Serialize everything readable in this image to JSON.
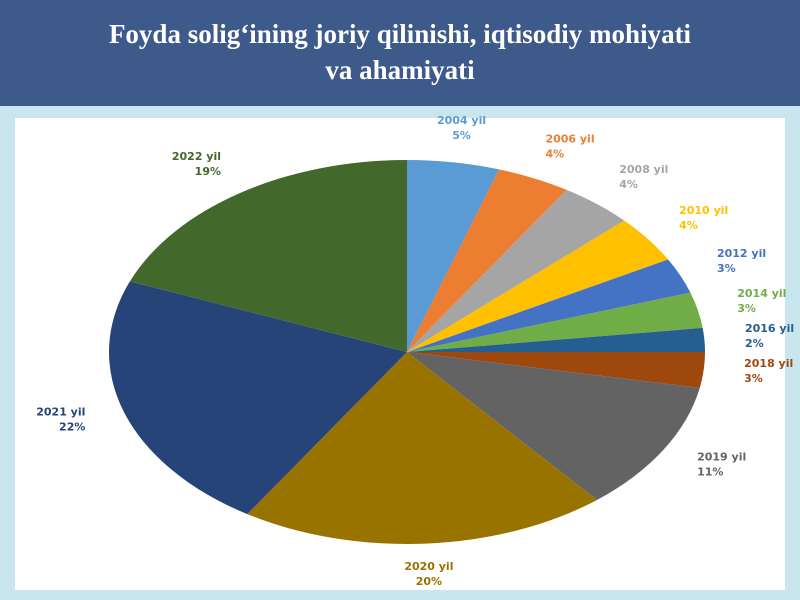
{
  "chart_data": {
    "type": "pie",
    "title": "Foyda solig‘ining joriy qilinishi, iqtisodiy mohiyati va ahamiyati",
    "categories": [
      "2004 yil",
      "2006 yil",
      "2008 yil",
      "2010 yil",
      "2012 yil",
      "2014 yil",
      "2016 yil",
      "2018 yil",
      "2019 yil",
      "2020 yil",
      "2021 yil",
      "2022 yil"
    ],
    "values": [
      5,
      4,
      4,
      4,
      3,
      3,
      2,
      3,
      11,
      20,
      22,
      19
    ],
    "value_labels": [
      "5%",
      "4%",
      "4%",
      "4%",
      "3%",
      "3%",
      "2%",
      "3%",
      "11%",
      "20%",
      "22%",
      "19%"
    ],
    "colors": [
      "#5b9bd5",
      "#ed7d31",
      "#a5a5a5",
      "#ffc000",
      "#4472c4",
      "#70ad47",
      "#255e91",
      "#9e480e",
      "#636363",
      "#997300",
      "#264478",
      "#43682b"
    ]
  }
}
